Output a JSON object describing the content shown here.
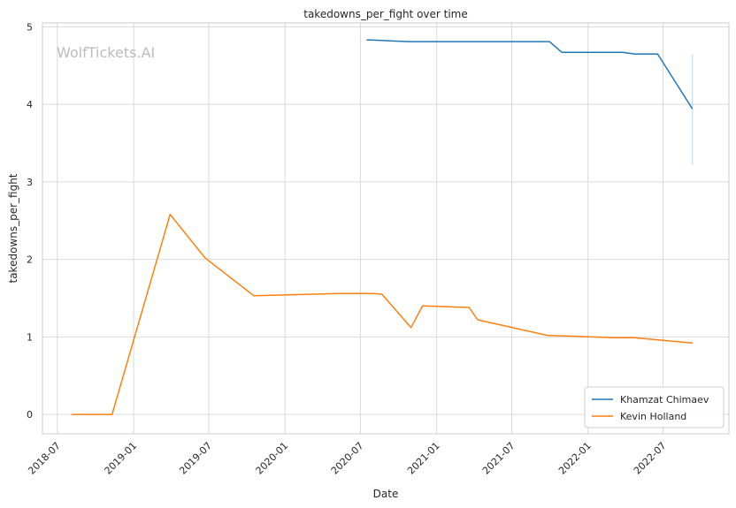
{
  "chart_data": {
    "type": "line",
    "title": "takedowns_per_fight over time",
    "xlabel": "Date",
    "ylabel": "takedowns_per_fight",
    "watermark": "WolfTickets.AI",
    "x_ticks": [
      "2018-07",
      "2019-01",
      "2019-07",
      "2020-01",
      "2020-07",
      "2021-01",
      "2021-07",
      "2022-01",
      "2022-07"
    ],
    "y_ticks": [
      0,
      1,
      2,
      3,
      4,
      5
    ],
    "xlim": [
      "2018-05-26",
      "2022-12-07"
    ],
    "ylim": [
      -0.25,
      5.05
    ],
    "grid": true,
    "legend_position": "bottom-right",
    "colors": {
      "Khamzat Chimaev": "#1f77b4",
      "Kevin Holland": "#ff7f0e",
      "grid": "#d9d9d9",
      "axes": "#cccccc",
      "watermark": "#bcbcbc"
    },
    "series": [
      {
        "name": "Khamzat Chimaev",
        "points": [
          [
            "2020-07-16",
            4.83
          ],
          [
            "2020-07-26",
            4.83
          ],
          [
            "2020-10-24",
            4.81
          ],
          [
            "2021-09-01",
            4.81
          ],
          [
            "2021-09-30",
            4.81
          ],
          [
            "2021-10-30",
            4.67
          ],
          [
            "2022-03-26",
            4.67
          ],
          [
            "2022-04-23",
            4.65
          ],
          [
            "2022-06-18",
            4.65
          ],
          [
            "2022-09-10",
            3.94
          ]
        ],
        "range_marker": {
          "x": "2022-09-10",
          "low": 3.22,
          "high": 4.65
        }
      },
      {
        "name": "Kevin Holland",
        "points": [
          [
            "2018-08-04",
            0.0
          ],
          [
            "2018-11-10",
            0.0
          ],
          [
            "2019-03-30",
            2.58
          ],
          [
            "2019-06-22",
            2.02
          ],
          [
            "2019-10-18",
            1.53
          ],
          [
            "2020-05-13",
            1.56
          ],
          [
            "2020-08-01",
            1.56
          ],
          [
            "2020-08-22",
            1.55
          ],
          [
            "2020-10-31",
            1.12
          ],
          [
            "2020-11-28",
            1.4
          ],
          [
            "2021-03-20",
            1.38
          ],
          [
            "2021-04-10",
            1.22
          ],
          [
            "2021-09-25",
            1.02
          ],
          [
            "2022-03-05",
            0.99
          ],
          [
            "2022-04-23",
            0.99
          ],
          [
            "2022-09-10",
            0.92
          ]
        ]
      }
    ]
  }
}
